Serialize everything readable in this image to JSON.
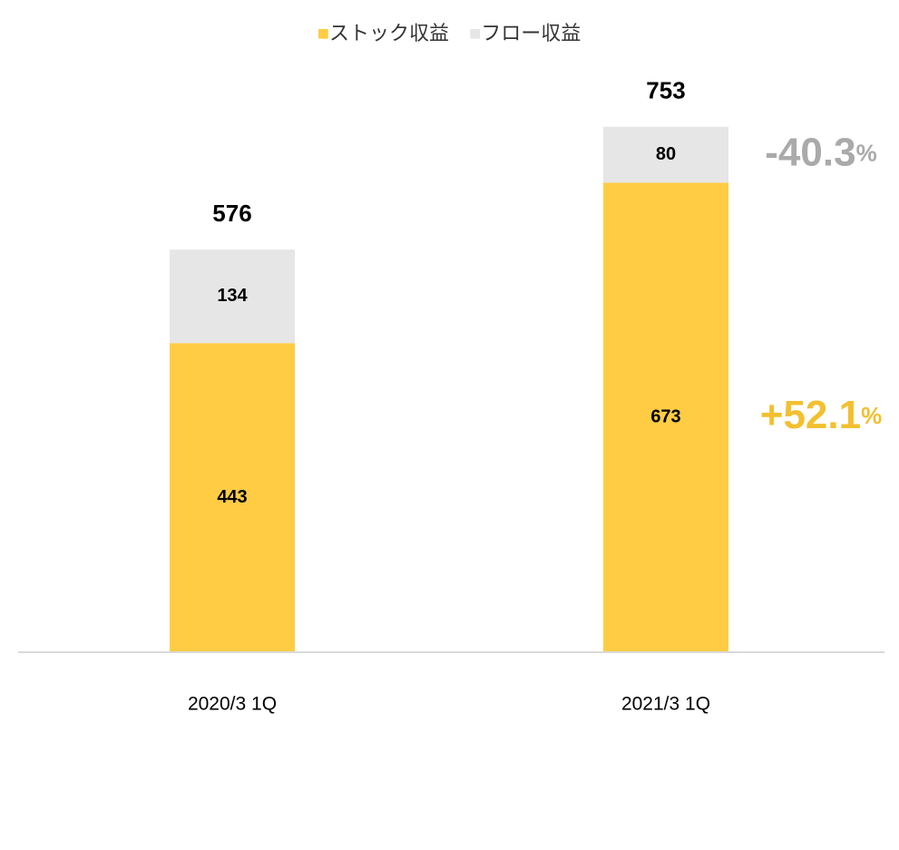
{
  "chart_data": {
    "type": "stacked_bar",
    "categories": [
      "2020/3 1Q",
      "2021/3 1Q"
    ],
    "series": [
      {
        "name": "ストック収益",
        "color": "#ffcc44",
        "values": [
          443,
          673
        ]
      },
      {
        "name": "フロー収益",
        "color": "#e6e6e6",
        "values": [
          134,
          80
        ]
      }
    ],
    "totals": [
      576,
      753
    ],
    "annotations": [
      {
        "series": 1,
        "label": "-40.3",
        "unit": "%",
        "color": "#aaaaaa"
      },
      {
        "series": 0,
        "label": "+52.1",
        "unit": "%",
        "color": "#f2c030"
      }
    ],
    "ylim": [
      0,
      780
    ]
  }
}
